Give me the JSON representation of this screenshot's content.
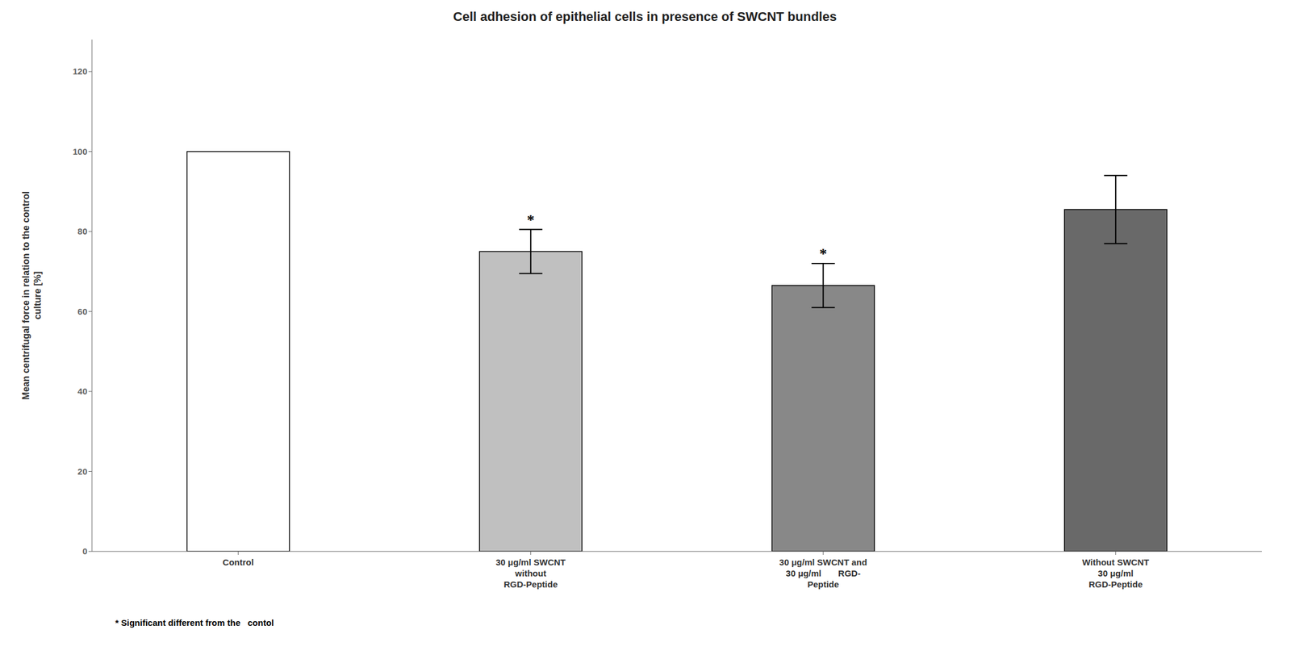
{
  "chart_data": {
    "type": "bar",
    "title": "Cell adhesion of epithelial cells in presence of SWCNT bundles",
    "y_label": "Mean centrifugal force in relation to the control\nculture [%]",
    "categories": [
      "Control",
      "30 μg/ml SWCNT\nwithout\nRGD-Peptide",
      "30 μg/ml SWCNT and\n30 μg/ml       RGD-\nPeptide",
      "Without SWCNT\n30 μg/ml\nRGD-Peptide"
    ],
    "values": [
      100,
      75,
      66.5,
      85.5
    ],
    "errors": [
      0,
      5.5,
      5.5,
      8.5
    ],
    "colors": [
      "#ffffff",
      "#c0c0c0",
      "#888888",
      "#696969"
    ],
    "ylim": [
      0,
      128
    ],
    "yticks": [
      0,
      20,
      40,
      60,
      80,
      100,
      120
    ],
    "annotations": [
      {
        "category": "30 μg/ml SWCNT\nwithout\nRGD-Peptide",
        "text": "*"
      },
      {
        "category": "30 μg/ml SWCNT and\n30 μg/ml       RGD-\nPeptide",
        "text": "*"
      }
    ],
    "footnote": "* Significant different from the   contol",
    "grid": false
  }
}
